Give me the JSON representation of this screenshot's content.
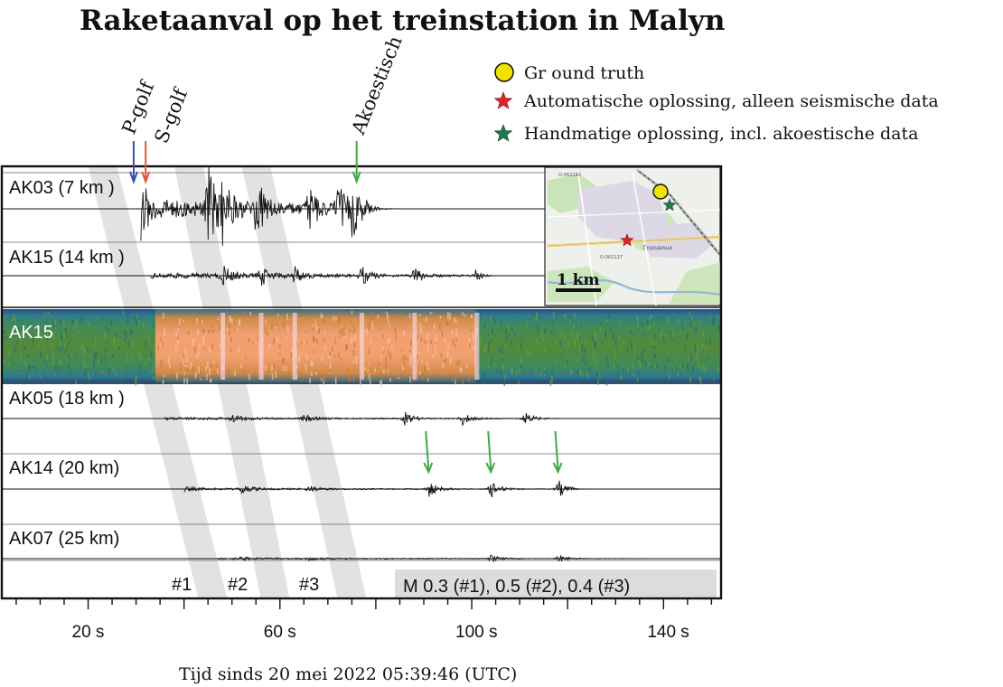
{
  "chart_data": {
    "type": "seismogram",
    "title": "Raketaanval op het treinstation in Malyn",
    "xlabel": "Tijd sinds 20 mei 2022 05:39:46 (UTC)",
    "xlim": [
      2,
      152
    ],
    "xticks": [
      {
        "value": 20,
        "label": "20 s"
      },
      {
        "value": 60,
        "label": "60 s"
      },
      {
        "value": 100,
        "label": "100 s"
      },
      {
        "value": 140,
        "label": "140  s"
      }
    ],
    "legend": [
      {
        "marker": "circle",
        "color": "#f2e200",
        "label": "Gr ound truth"
      },
      {
        "marker": "star",
        "color": "#d9262b",
        "label": "Automatische oplossing, alleen seismische data"
      },
      {
        "marker": "star",
        "color": "#1f7a4d",
        "label": "Handmatige oplossing, incl. akoestische data"
      }
    ],
    "traces": [
      {
        "label": "AK03 (7 km   )",
        "distance_km": 7,
        "onset_s": 31,
        "end_s": 78,
        "bursts": [
          {
            "t": 31,
            "a": 0.55
          },
          {
            "t": 45,
            "a": 1.0
          },
          {
            "t": 48,
            "a": 0.6
          },
          {
            "t": 55,
            "a": 0.7
          },
          {
            "t": 66,
            "a": 0.55
          },
          {
            "t": 72,
            "a": 0.55
          },
          {
            "t": 75,
            "a": 0.6
          }
        ],
        "base_amp": 0.22
      },
      {
        "label": "AK15 (14 km   )",
        "distance_km": 14,
        "onset_s": 33,
        "end_s": 101,
        "bursts": [
          {
            "t": 48,
            "a": 0.35
          },
          {
            "t": 56,
            "a": 0.35
          },
          {
            "t": 63,
            "a": 0.3
          },
          {
            "t": 77,
            "a": 0.35
          },
          {
            "t": 88,
            "a": 0.3
          },
          {
            "t": 101,
            "a": 0.35
          }
        ],
        "base_amp": 0.1
      },
      {
        "label": "AK15",
        "kind": "spectrogram",
        "onset_s": 34,
        "end_s": 101
      },
      {
        "label": "AK05 (18 km   )",
        "distance_km": 18,
        "onset_s": 36,
        "end_s": 118,
        "bursts": [
          {
            "t": 50,
            "a": 0.22
          },
          {
            "t": 65,
            "a": 0.2
          },
          {
            "t": 86,
            "a": 0.35
          },
          {
            "t": 98,
            "a": 0.35
          },
          {
            "t": 111,
            "a": 0.35
          }
        ],
        "base_amp": 0.07
      },
      {
        "label": "AK14 (20 km)",
        "distance_km": 20,
        "onset_s": 40,
        "end_s": 121,
        "bursts": [
          {
            "t": 40,
            "a": 0.08
          },
          {
            "t": 52,
            "a": 0.22
          },
          {
            "t": 66,
            "a": 0.15
          },
          {
            "t": 91,
            "a": 0.38
          },
          {
            "t": 104,
            "a": 0.4
          },
          {
            "t": 118,
            "a": 0.4
          }
        ],
        "base_amp": 0.05
      },
      {
        "label": "AK07 (25 km)",
        "distance_km": 25,
        "onset_s": 47,
        "end_s": 136,
        "bursts": [
          {
            "t": 52,
            "a": 0.08
          },
          {
            "t": 66,
            "a": 0.08
          },
          {
            "t": 104,
            "a": 0.2
          },
          {
            "t": 118,
            "a": 0.22
          }
        ],
        "base_amp": 0.05
      }
    ],
    "phase_annotations": [
      {
        "label": "P-golf",
        "time_s": 29.5,
        "color": "#3a4fa8"
      },
      {
        "label": "S-golf",
        "time_s": 32,
        "color": "#e05a3a"
      },
      {
        "label": "Akoestisch",
        "time_s": 76,
        "color": "#44a844"
      }
    ],
    "ak14_green_arrows_s": [
      91,
      104,
      118
    ],
    "events": [
      {
        "label": "#1",
        "time_ak07_s": 43
      },
      {
        "label": "#2",
        "time_ak07_s": 56
      },
      {
        "label": "#3",
        "time_ak07_s": 72
      }
    ],
    "magnitude_text": "M 0.3 (#1), 0.5 (#2), 0.4 (#3)",
    "inset_map": {
      "scale_label": "1 km",
      "road_labels": [
        "O-062242",
        "O-061117",
        "Городище"
      ],
      "markers": [
        "ground-truth",
        "automatic-solution",
        "manual-solution"
      ]
    }
  }
}
